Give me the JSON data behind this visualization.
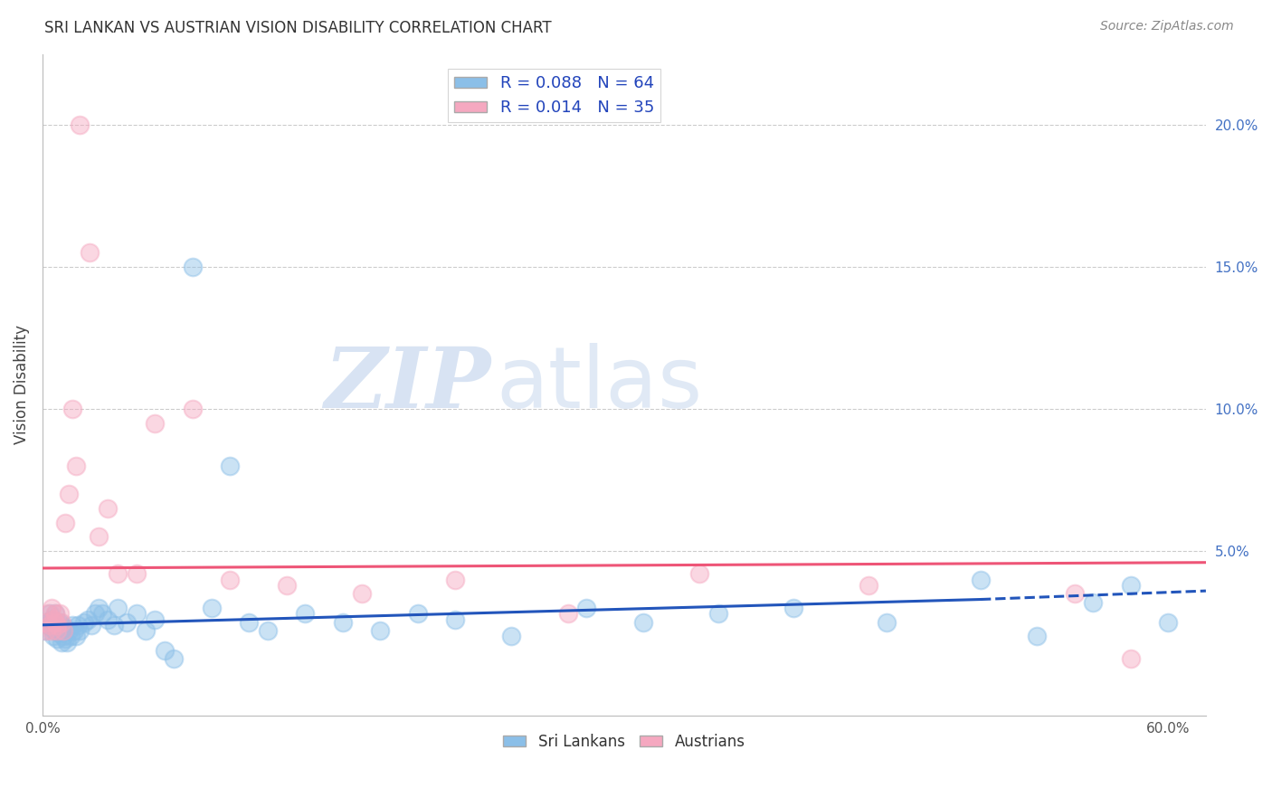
{
  "title": "SRI LANKAN VS AUSTRIAN VISION DISABILITY CORRELATION CHART",
  "source": "Source: ZipAtlas.com",
  "ylabel": "Vision Disability",
  "xlim": [
    0.0,
    0.62
  ],
  "ylim": [
    -0.008,
    0.225
  ],
  "yticks_right": [
    0.05,
    0.1,
    0.15,
    0.2
  ],
  "yticklabels_right": [
    "5.0%",
    "10.0%",
    "15.0%",
    "20.0%"
  ],
  "sri_lankan_color": "#8BBFE8",
  "austrian_color": "#F5A8C0",
  "sri_lankan_R": 0.088,
  "sri_lankan_N": 64,
  "austrian_R": 0.014,
  "austrian_N": 35,
  "trend_blue": "#2255BB",
  "trend_pink": "#EE5577",
  "legend_label_srilankans": "Sri Lankans",
  "legend_label_austrians": "Austrians",
  "watermark_zip": "ZIP",
  "watermark_atlas": "atlas",
  "background_color": "#ffffff",
  "grid_color": "#cccccc",
  "title_color": "#333333",
  "legend_text_color": "#2244BB",
  "sl_trend_x0": 0.0,
  "sl_trend_x1": 0.5,
  "sl_trend_x2": 0.62,
  "sl_trend_y0": 0.024,
  "sl_trend_y1": 0.033,
  "sl_trend_y2": 0.036,
  "au_trend_x0": 0.0,
  "au_trend_x1": 0.62,
  "au_trend_y0": 0.044,
  "au_trend_y1": 0.046,
  "sri_lankans_x": [
    0.001,
    0.002,
    0.003,
    0.004,
    0.005,
    0.005,
    0.006,
    0.006,
    0.007,
    0.007,
    0.008,
    0.008,
    0.009,
    0.009,
    0.01,
    0.01,
    0.011,
    0.011,
    0.012,
    0.012,
    0.013,
    0.014,
    0.015,
    0.016,
    0.017,
    0.018,
    0.019,
    0.02,
    0.022,
    0.024,
    0.026,
    0.028,
    0.03,
    0.032,
    0.035,
    0.038,
    0.04,
    0.045,
    0.05,
    0.055,
    0.06,
    0.065,
    0.07,
    0.08,
    0.09,
    0.1,
    0.11,
    0.12,
    0.14,
    0.16,
    0.18,
    0.2,
    0.22,
    0.25,
    0.29,
    0.32,
    0.36,
    0.4,
    0.45,
    0.5,
    0.53,
    0.56,
    0.58,
    0.6
  ],
  "sri_lankans_y": [
    0.022,
    0.025,
    0.024,
    0.028,
    0.023,
    0.026,
    0.02,
    0.024,
    0.022,
    0.028,
    0.019,
    0.023,
    0.021,
    0.025,
    0.018,
    0.024,
    0.02,
    0.022,
    0.019,
    0.023,
    0.018,
    0.022,
    0.02,
    0.024,
    0.022,
    0.02,
    0.024,
    0.022,
    0.025,
    0.026,
    0.024,
    0.028,
    0.03,
    0.028,
    0.026,
    0.024,
    0.03,
    0.025,
    0.028,
    0.022,
    0.026,
    0.015,
    0.012,
    0.15,
    0.03,
    0.08,
    0.025,
    0.022,
    0.028,
    0.025,
    0.022,
    0.028,
    0.026,
    0.02,
    0.03,
    0.025,
    0.028,
    0.03,
    0.025,
    0.04,
    0.02,
    0.032,
    0.038,
    0.025
  ],
  "austrians_x": [
    0.001,
    0.002,
    0.003,
    0.004,
    0.005,
    0.005,
    0.006,
    0.007,
    0.007,
    0.008,
    0.008,
    0.009,
    0.01,
    0.011,
    0.012,
    0.014,
    0.016,
    0.018,
    0.02,
    0.025,
    0.03,
    0.035,
    0.04,
    0.05,
    0.06,
    0.08,
    0.1,
    0.13,
    0.17,
    0.22,
    0.28,
    0.35,
    0.44,
    0.55,
    0.58
  ],
  "austrians_y": [
    0.025,
    0.022,
    0.028,
    0.024,
    0.03,
    0.022,
    0.026,
    0.025,
    0.028,
    0.024,
    0.022,
    0.028,
    0.025,
    0.022,
    0.06,
    0.07,
    0.1,
    0.08,
    0.2,
    0.155,
    0.055,
    0.065,
    0.042,
    0.042,
    0.095,
    0.1,
    0.04,
    0.038,
    0.035,
    0.04,
    0.028,
    0.042,
    0.038,
    0.035,
    0.012
  ]
}
